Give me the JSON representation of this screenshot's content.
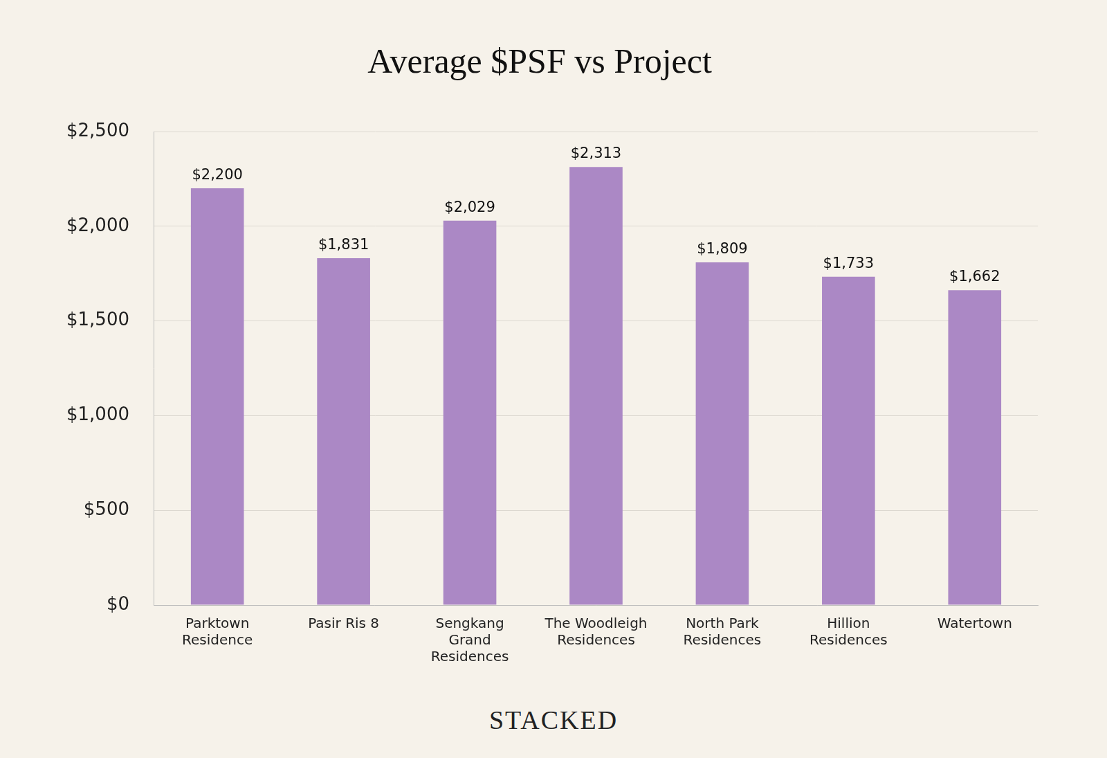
{
  "chart_data": {
    "type": "bar",
    "title": "Average $PSF vs Project",
    "categories": [
      "Parktown Residence",
      "Pasir Ris 8",
      "Sengkang Grand Residences",
      "The Woodleigh Residences",
      "North Park Residences",
      "Hillion Residences",
      "Watertown"
    ],
    "values": [
      2200,
      1831,
      2029,
      2313,
      1809,
      1733,
      1662
    ],
    "value_labels": [
      "$2,200",
      "$1,831",
      "$2,029",
      "$2,313",
      "$1,809",
      "$1,733",
      "$1,662"
    ],
    "color": "#ab88c5",
    "ylim": [
      0,
      2500
    ],
    "yticks": [
      {
        "value": 0,
        "label": "$0"
      },
      {
        "value": 500,
        "label": "$500"
      },
      {
        "value": 1000,
        "label": "$1,000"
      },
      {
        "value": 1500,
        "label": "$1,500"
      },
      {
        "value": 2000,
        "label": "$2,000"
      },
      {
        "value": 2500,
        "label": "$2,500"
      }
    ],
    "grid": true,
    "data_labels": true,
    "annotations": [
      "STACKED"
    ]
  }
}
